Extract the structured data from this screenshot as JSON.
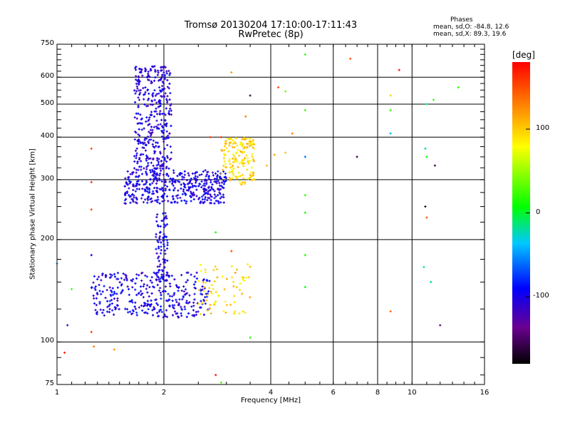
{
  "chart_data": {
    "type": "scatter",
    "title": "Tromsø 20130204 17:10:00-17:11:43",
    "subtitle": "RwPretec (8p)",
    "xlabel": "Frequency [MHz]",
    "ylabel": "Stationary phase Virtual Height [km]",
    "x_scale": "log",
    "y_scale": "log",
    "xlim": [
      1,
      16
    ],
    "ylim": [
      75,
      750
    ],
    "x_ticks": [
      1,
      2,
      4,
      6,
      8,
      10,
      16
    ],
    "x_tick_labels": [
      "1",
      "2",
      "4",
      "6",
      "8",
      "10",
      "16"
    ],
    "y_ticks": [
      75,
      100,
      200,
      300,
      400,
      500,
      600,
      750
    ],
    "y_tick_labels": [
      "75",
      "100",
      "200",
      "300",
      "400",
      "500",
      "600",
      "750"
    ],
    "grid": true,
    "phase_stats": {
      "header": "Phases",
      "o_line": "mean, sd,O: -84.8, 12.6",
      "x_line": "mean, sd,X:  89.3, 19.6"
    },
    "colorbar": {
      "label": "[deg]",
      "min": -180,
      "max": 180,
      "ticks": [
        100,
        0,
        -100
      ],
      "tick_labels": [
        "100",
        "0",
        "-100"
      ]
    },
    "clusters": [
      {
        "name": "F-region O-trace",
        "x_range": [
          1.55,
          3.0
        ],
        "y_range": [
          255,
          320
        ],
        "n": 420,
        "phase": -100
      },
      {
        "name": "F-region cusp",
        "x_range": [
          1.65,
          2.1
        ],
        "y_range": [
          320,
          650
        ],
        "n": 360,
        "phase": -105
      },
      {
        "name": "F-region X-trace",
        "x_range": [
          2.9,
          3.6
        ],
        "y_range": [
          290,
          400
        ],
        "n": 160,
        "phase": 95
      },
      {
        "name": "E-region O-trace",
        "x_range": [
          1.25,
          2.7
        ],
        "y_range": [
          118,
          160
        ],
        "n": 330,
        "phase": -100
      },
      {
        "name": "E-region rise",
        "x_range": [
          1.9,
          2.05
        ],
        "y_range": [
          150,
          240
        ],
        "n": 90,
        "phase": -100
      },
      {
        "name": "E-region X-trace",
        "x_range": [
          2.5,
          3.5
        ],
        "y_range": [
          120,
          170
        ],
        "n": 70,
        "phase": 95
      }
    ],
    "points": [
      {
        "x": 3.9,
        "y": 330,
        "phase": 110
      },
      {
        "x": 4.1,
        "y": 355,
        "phase": 115
      },
      {
        "x": 4.4,
        "y": 360,
        "phase": 105
      },
      {
        "x": 4.6,
        "y": 410,
        "phase": 130
      },
      {
        "x": 4.2,
        "y": 560,
        "phase": 150
      },
      {
        "x": 4.4,
        "y": 545,
        "phase": 40
      },
      {
        "x": 5.0,
        "y": 700,
        "phase": 15
      },
      {
        "x": 5.0,
        "y": 480,
        "phase": 20
      },
      {
        "x": 5.0,
        "y": 350,
        "phase": -60
      },
      {
        "x": 5.0,
        "y": 270,
        "phase": 20
      },
      {
        "x": 5.0,
        "y": 240,
        "phase": 10
      },
      {
        "x": 5.0,
        "y": 180,
        "phase": 20
      },
      {
        "x": 5.0,
        "y": 145,
        "phase": 5
      },
      {
        "x": 6.7,
        "y": 680,
        "phase": 150
      },
      {
        "x": 7.0,
        "y": 350,
        "phase": -150
      },
      {
        "x": 8.7,
        "y": 530,
        "phase": 100
      },
      {
        "x": 8.7,
        "y": 480,
        "phase": 20
      },
      {
        "x": 8.7,
        "y": 410,
        "phase": -40
      },
      {
        "x": 8.7,
        "y": 123,
        "phase": 140
      },
      {
        "x": 9.2,
        "y": 630,
        "phase": 170
      },
      {
        "x": 10.9,
        "y": 370,
        "phase": -20
      },
      {
        "x": 11.0,
        "y": 350,
        "phase": 10
      },
      {
        "x": 11.0,
        "y": 500,
        "phase": -10
      },
      {
        "x": 11.5,
        "y": 515,
        "phase": 20
      },
      {
        "x": 11.6,
        "y": 330,
        "phase": -160
      },
      {
        "x": 10.9,
        "y": 250,
        "phase": -170
      },
      {
        "x": 11.0,
        "y": 232,
        "phase": 150
      },
      {
        "x": 10.8,
        "y": 166,
        "phase": -20
      },
      {
        "x": 11.3,
        "y": 150,
        "phase": -15
      },
      {
        "x": 12.0,
        "y": 112,
        "phase": -140
      },
      {
        "x": 13.5,
        "y": 560,
        "phase": 20
      },
      {
        "x": 1.05,
        "y": 93,
        "phase": 170
      },
      {
        "x": 1.07,
        "y": 112,
        "phase": -110
      },
      {
        "x": 1.1,
        "y": 143,
        "phase": 20
      },
      {
        "x": 1.0,
        "y": 170,
        "phase": -40
      },
      {
        "x": 1.25,
        "y": 370,
        "phase": 150
      },
      {
        "x": 1.25,
        "y": 295,
        "phase": 165
      },
      {
        "x": 1.25,
        "y": 245,
        "phase": 150
      },
      {
        "x": 1.25,
        "y": 180,
        "phase": -100
      },
      {
        "x": 1.25,
        "y": 107,
        "phase": 155
      },
      {
        "x": 1.27,
        "y": 97,
        "phase": 130
      },
      {
        "x": 1.45,
        "y": 95,
        "phase": 120
      },
      {
        "x": 2.7,
        "y": 400,
        "phase": 160
      },
      {
        "x": 2.9,
        "y": 400,
        "phase": 160
      },
      {
        "x": 3.1,
        "y": 620,
        "phase": 120
      },
      {
        "x": 3.5,
        "y": 530,
        "phase": -160
      },
      {
        "x": 2.8,
        "y": 80,
        "phase": 170
      },
      {
        "x": 2.9,
        "y": 76,
        "phase": 30
      },
      {
        "x": 3.5,
        "y": 103,
        "phase": 20
      },
      {
        "x": 2.8,
        "y": 210,
        "phase": 10
      },
      {
        "x": 3.1,
        "y": 185,
        "phase": 150
      },
      {
        "x": 3.4,
        "y": 460,
        "phase": 130
      }
    ]
  }
}
